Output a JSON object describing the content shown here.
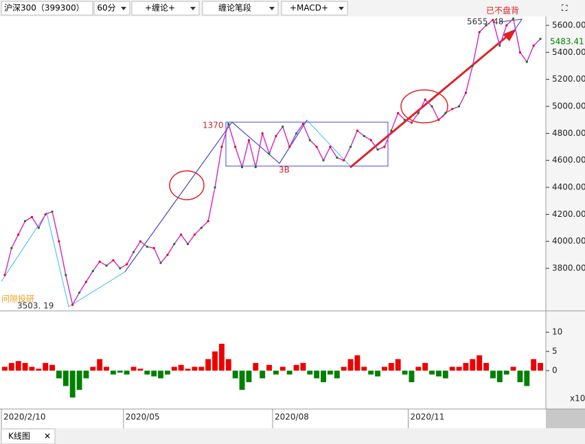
{
  "toolbar": {
    "items": [
      "沪深300（399300）",
      "60分",
      "+缠论+",
      "缠论笔段",
      "+MACD+"
    ]
  },
  "chart_data": [
    {
      "type": "line",
      "color": "#cc33cc",
      "grid": false,
      "categories": [
        "2020/2/10",
        null,
        null,
        null,
        null,
        null,
        null,
        null,
        null,
        null,
        null,
        null,
        null,
        null,
        null,
        null,
        null,
        null,
        "2020/05",
        null,
        null,
        null,
        null,
        null,
        null,
        null,
        null,
        null,
        null,
        null,
        null,
        null,
        null,
        null,
        null,
        null,
        null,
        null,
        null,
        null,
        "2020/08",
        null,
        null,
        null,
        null,
        null,
        null,
        null,
        null,
        null,
        null,
        null,
        null,
        null,
        null,
        null,
        null,
        null,
        null,
        null,
        "2020/11",
        null,
        null,
        null,
        null,
        null,
        null,
        null,
        null,
        null,
        null,
        null,
        null,
        null,
        null,
        null,
        null,
        null,
        null,
        null
      ],
      "values": [
        3750,
        3950,
        4050,
        4150,
        4180,
        4100,
        4200,
        4220,
        4000,
        3750,
        3530,
        3620,
        3700,
        3780,
        3850,
        3820,
        3860,
        3800,
        3830,
        3920,
        4000,
        3960,
        3950,
        3840,
        3900,
        3980,
        4050,
        3980,
        4050,
        4100,
        4150,
        4400,
        4700,
        4870,
        4700,
        4550,
        4750,
        4550,
        4800,
        4650,
        4780,
        4850,
        4700,
        4800,
        4870,
        4750,
        4700,
        4600,
        4700,
        4620,
        4600,
        4700,
        4820,
        4780,
        4750,
        4680,
        4700,
        4820,
        4950,
        4900,
        4880,
        4950,
        5050,
        5000,
        4900,
        4950,
        4980,
        5000,
        5100,
        5300,
        5550,
        5600,
        5640,
        5450,
        5600,
        5650,
        5400,
        5330,
        5450,
        5500
      ],
      "ylim": [
        3490,
        5666
      ],
      "yticks": [
        {
          "value": 3800,
          "label": "3800.00"
        },
        {
          "value": 4000,
          "label": "4000.00"
        },
        {
          "value": 4200,
          "label": "4200.00"
        },
        {
          "value": 4400,
          "label": "4400.00"
        },
        {
          "value": 4600,
          "label": "4600.00"
        },
        {
          "value": 4800,
          "label": "4800.00"
        },
        {
          "value": 5000,
          "label": "5000.00"
        },
        {
          "value": 5200,
          "label": "5200.00"
        },
        {
          "value": 5400,
          "label": "5400.00"
        },
        {
          "value": 5600,
          "label": "5600.00"
        }
      ],
      "annotations": {
        "high": "5655. 48",
        "low": "3503. 19",
        "stroke": "1370",
        "buy": "3B",
        "note": "已不盘背",
        "watermark": "间隙投研",
        "last": "5483.41"
      }
    },
    {
      "type": "bar",
      "up_color": "#ee0000",
      "down_color": "#008000",
      "values": [
        1,
        2,
        2.5,
        2,
        1,
        0.5,
        2,
        1.5,
        -2,
        -4,
        -7,
        -5,
        -2,
        1,
        3,
        1,
        -1,
        -0.5,
        -1,
        1,
        0.5,
        -1,
        -1.5,
        -2,
        -1,
        1,
        1.5,
        0.5,
        1,
        1,
        3,
        5,
        7,
        3,
        -2,
        -5,
        -3,
        2,
        -2,
        1.5,
        -1,
        1,
        -1,
        1.5,
        2,
        -1,
        -2,
        -3,
        -1,
        -2,
        1,
        3,
        4,
        1,
        -1,
        -1.5,
        1,
        2,
        3,
        -1,
        -3,
        1,
        2,
        -1,
        -1.5,
        -2,
        1,
        1,
        2,
        3,
        4,
        2,
        -2,
        -3,
        -1,
        1,
        -3,
        -4,
        3,
        2
      ],
      "ylim": [
        -9.8,
        15.2
      ],
      "yticks": [
        0,
        5,
        10
      ],
      "unit": "x10"
    }
  ],
  "tab": "K线图"
}
